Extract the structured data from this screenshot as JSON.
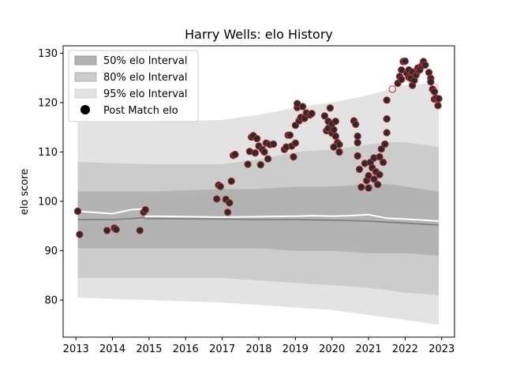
{
  "chart_data": {
    "type": "scatter",
    "title": "Harry Wells: elo History",
    "xlabel": "",
    "ylabel": "elo score",
    "xlim": [
      2012.65,
      2023.35
    ],
    "ylim": [
      72.5,
      131.5
    ],
    "x_ticks": [
      2013,
      2014,
      2015,
      2016,
      2017,
      2018,
      2019,
      2020,
      2021,
      2022,
      2023
    ],
    "y_ticks": [
      80,
      90,
      100,
      110,
      120,
      130
    ],
    "grid": false,
    "legend_position": "top-left",
    "legend": [
      {
        "label": "50% elo Interval",
        "color": "#b3b3b3"
      },
      {
        "label": "80% elo Interval",
        "color": "#cccccc"
      },
      {
        "label": "95% elo Interval",
        "color": "#e3e3e3"
      },
      {
        "label": "Post Match elo",
        "color": "#000000"
      }
    ],
    "colors": {
      "band50": "#b3b3b3",
      "band80": "#cccccc",
      "band95": "#e3e3e3",
      "median_line": "#808080",
      "mean_line": "#ffffff",
      "marker_face": "#2b2b2b",
      "marker_edge": "#c0303a"
    },
    "bands": {
      "x": [
        2013.05,
        2015.0,
        2017.0,
        2018.0,
        2019.0,
        2020.0,
        2021.0,
        2021.5,
        2022.0,
        2022.92
      ],
      "p95_low": [
        80.5,
        80.0,
        79.5,
        79.0,
        78.5,
        78.0,
        77.0,
        76.5,
        76.0,
        75.0
      ],
      "p95_high": [
        116.0,
        116.0,
        116.5,
        117.5,
        119.0,
        120.0,
        121.5,
        122.5,
        123.5,
        124.0
      ],
      "p80_low": [
        84.5,
        84.5,
        84.5,
        84.0,
        83.5,
        83.0,
        82.5,
        82.0,
        81.5,
        81.0
      ],
      "p80_high": [
        108.0,
        107.5,
        107.5,
        108.5,
        110.0,
        110.5,
        111.5,
        112.0,
        112.0,
        111.0
      ],
      "p50_low": [
        90.5,
        90.5,
        90.5,
        90.5,
        90.0,
        90.0,
        89.5,
        89.5,
        89.5,
        89.0
      ],
      "p50_high": [
        102.0,
        102.0,
        102.5,
        102.5,
        103.0,
        103.0,
        103.5,
        103.5,
        103.0,
        102.0
      ]
    },
    "mean_line": {
      "x": [
        2013.05,
        2014.0,
        2014.5,
        2014.85,
        2014.9,
        2017.0,
        2018.0,
        2019.0,
        2019.5,
        2020.0,
        2020.5,
        2021.0,
        2021.5,
        2022.0,
        2022.5,
        2022.92
      ],
      "y": [
        98.0,
        97.5,
        98.3,
        98.5,
        97.0,
        96.8,
        96.9,
        97.0,
        97.1,
        97.0,
        97.1,
        97.3,
        96.6,
        96.4,
        96.2,
        96.0
      ]
    },
    "median_line": {
      "x": [
        2013.05,
        2014.0,
        2014.5,
        2014.85,
        2014.9,
        2017.0,
        2018.0,
        2019.0,
        2020.0,
        2021.0,
        2021.5,
        2022.0,
        2022.5,
        2022.92
      ],
      "y": [
        96.3,
        96.3,
        96.5,
        96.7,
        96.5,
        96.4,
        96.3,
        96.3,
        96.2,
        96.0,
        95.8,
        95.6,
        95.4,
        95.2
      ]
    },
    "points": [
      {
        "x": 2013.05,
        "y": 98.0
      },
      {
        "x": 2013.1,
        "y": 93.3
      },
      {
        "x": 2013.85,
        "y": 94.1
      },
      {
        "x": 2014.05,
        "y": 94.6
      },
      {
        "x": 2014.1,
        "y": 94.3
      },
      {
        "x": 2014.75,
        "y": 94.1
      },
      {
        "x": 2014.85,
        "y": 97.8
      },
      {
        "x": 2014.9,
        "y": 98.3
      },
      {
        "x": 2016.85,
        "y": 100.5
      },
      {
        "x": 2016.9,
        "y": 103.3
      },
      {
        "x": 2016.95,
        "y": 103.0
      },
      {
        "x": 2017.1,
        "y": 100.4
      },
      {
        "x": 2017.15,
        "y": 97.8
      },
      {
        "x": 2017.2,
        "y": 99.7
      },
      {
        "x": 2017.25,
        "y": 104.1
      },
      {
        "x": 2017.3,
        "y": 109.3
      },
      {
        "x": 2017.35,
        "y": 109.5
      },
      {
        "x": 2017.7,
        "y": 107.5
      },
      {
        "x": 2017.75,
        "y": 110.1
      },
      {
        "x": 2017.8,
        "y": 113.0
      },
      {
        "x": 2017.85,
        "y": 113.3
      },
      {
        "x": 2017.9,
        "y": 109.8
      },
      {
        "x": 2017.95,
        "y": 112.7
      },
      {
        "x": 2018.0,
        "y": 111.2
      },
      {
        "x": 2018.05,
        "y": 107.4
      },
      {
        "x": 2018.1,
        "y": 110.5
      },
      {
        "x": 2018.15,
        "y": 110.0
      },
      {
        "x": 2018.2,
        "y": 111.8
      },
      {
        "x": 2018.25,
        "y": 108.6
      },
      {
        "x": 2018.3,
        "y": 111.5
      },
      {
        "x": 2018.4,
        "y": 111.6
      },
      {
        "x": 2018.7,
        "y": 110.5
      },
      {
        "x": 2018.75,
        "y": 111.0
      },
      {
        "x": 2018.8,
        "y": 113.4
      },
      {
        "x": 2018.85,
        "y": 113.4
      },
      {
        "x": 2018.9,
        "y": 111.2
      },
      {
        "x": 2018.95,
        "y": 109.0
      },
      {
        "x": 2019.0,
        "y": 111.8
      },
      {
        "x": 2019.0,
        "y": 115.4
      },
      {
        "x": 2019.05,
        "y": 119.0
      },
      {
        "x": 2019.05,
        "y": 119.8
      },
      {
        "x": 2019.1,
        "y": 116.3
      },
      {
        "x": 2019.15,
        "y": 117.0
      },
      {
        "x": 2019.2,
        "y": 119.2
      },
      {
        "x": 2019.25,
        "y": 116.8
      },
      {
        "x": 2019.3,
        "y": 117.9
      },
      {
        "x": 2019.4,
        "y": 117.5
      },
      {
        "x": 2019.45,
        "y": 117.8
      },
      {
        "x": 2019.8,
        "y": 117.3
      },
      {
        "x": 2019.85,
        "y": 114.3
      },
      {
        "x": 2019.9,
        "y": 116.2
      },
      {
        "x": 2019.9,
        "y": 114.8
      },
      {
        "x": 2019.95,
        "y": 118.9
      },
      {
        "x": 2020.0,
        "y": 115.7
      },
      {
        "x": 2020.0,
        "y": 113.8
      },
      {
        "x": 2020.05,
        "y": 114.5
      },
      {
        "x": 2020.1,
        "y": 116.2
      },
      {
        "x": 2020.1,
        "y": 113.2
      },
      {
        "x": 2020.15,
        "y": 111.9
      },
      {
        "x": 2020.2,
        "y": 110.0
      },
      {
        "x": 2020.2,
        "y": 111.5
      },
      {
        "x": 2020.05,
        "y": 111.0
      },
      {
        "x": 2020.6,
        "y": 116.3
      },
      {
        "x": 2020.65,
        "y": 115.6
      },
      {
        "x": 2020.7,
        "y": 113.2
      },
      {
        "x": 2020.7,
        "y": 111.9
      },
      {
        "x": 2020.7,
        "y": 109.2
      },
      {
        "x": 2020.75,
        "y": 106.5
      },
      {
        "x": 2020.8,
        "y": 102.9
      },
      {
        "x": 2020.9,
        "y": 107.7
      },
      {
        "x": 2020.95,
        "y": 104.2
      },
      {
        "x": 2021.0,
        "y": 102.7
      },
      {
        "x": 2021.0,
        "y": 105.2
      },
      {
        "x": 2021.05,
        "y": 107.9
      },
      {
        "x": 2021.1,
        "y": 106.8
      },
      {
        "x": 2021.15,
        "y": 108.8
      },
      {
        "x": 2021.15,
        "y": 104.5
      },
      {
        "x": 2021.2,
        "y": 106.0
      },
      {
        "x": 2021.25,
        "y": 103.4
      },
      {
        "x": 2021.3,
        "y": 105.4
      },
      {
        "x": 2021.3,
        "y": 109.0
      },
      {
        "x": 2021.35,
        "y": 110.6
      },
      {
        "x": 2021.4,
        "y": 107.9
      },
      {
        "x": 2021.45,
        "y": 111.6
      },
      {
        "x": 2021.5,
        "y": 113.9
      },
      {
        "x": 2021.5,
        "y": 116.7
      },
      {
        "x": 2021.5,
        "y": 120.5
      },
      {
        "x": 2021.65,
        "y": 122.7,
        "hollow": true
      },
      {
        "x": 2021.8,
        "y": 123.9
      },
      {
        "x": 2021.85,
        "y": 125.3
      },
      {
        "x": 2021.9,
        "y": 124.7
      },
      {
        "x": 2021.9,
        "y": 126.6
      },
      {
        "x": 2021.95,
        "y": 128.3
      },
      {
        "x": 2022.0,
        "y": 128.4
      },
      {
        "x": 2022.05,
        "y": 125.9
      },
      {
        "x": 2022.1,
        "y": 126.6
      },
      {
        "x": 2022.1,
        "y": 125.1
      },
      {
        "x": 2022.15,
        "y": 124.9
      },
      {
        "x": 2022.2,
        "y": 126.2
      },
      {
        "x": 2022.2,
        "y": 123.5
      },
      {
        "x": 2022.25,
        "y": 124.5
      },
      {
        "x": 2022.3,
        "y": 125.6
      },
      {
        "x": 2022.35,
        "y": 126.4
      },
      {
        "x": 2022.35,
        "y": 127.0
      },
      {
        "x": 2022.4,
        "y": 126.6
      },
      {
        "x": 2022.45,
        "y": 127.4
      },
      {
        "x": 2022.5,
        "y": 127.9
      },
      {
        "x": 2022.5,
        "y": 128.3
      },
      {
        "x": 2022.55,
        "y": 127.6
      },
      {
        "x": 2022.65,
        "y": 126.1
      },
      {
        "x": 2022.7,
        "y": 124.9
      },
      {
        "x": 2022.7,
        "y": 124.2
      },
      {
        "x": 2022.75,
        "y": 122.7
      },
      {
        "x": 2022.8,
        "y": 122.2
      },
      {
        "x": 2022.8,
        "y": 120.7
      },
      {
        "x": 2022.85,
        "y": 120.9
      },
      {
        "x": 2022.9,
        "y": 119.4
      },
      {
        "x": 2022.92,
        "y": 120.8
      }
    ]
  }
}
